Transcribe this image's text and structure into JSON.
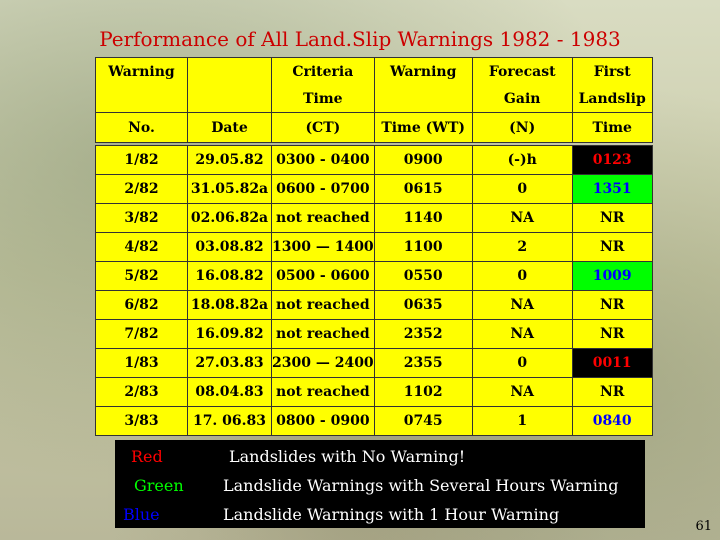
{
  "title": "Performance of All Land.Slip Warnings 1982 - 1983",
  "header_row1": [
    "Warning",
    "",
    "Criteria",
    "Warning",
    "Forecast",
    "First"
  ],
  "header_row2": [
    "",
    "",
    "Time",
    "",
    "Gain",
    "Landslip"
  ],
  "header_row3": [
    "No.",
    "Date",
    "(CT)",
    "Time (WT)",
    "(N)",
    "Time"
  ],
  "rows": [
    {
      "no": "1/82",
      "date": "29.05.82",
      "ct": "0300 - 0400",
      "wt": "0900",
      "gain": "(-)h",
      "first": "0123",
      "status": "red"
    },
    {
      "no": "2/82",
      "date": "31.05.82a",
      "ct": "0600 - 0700",
      "wt": "0615",
      "gain": "0",
      "first": "1351",
      "status": "green"
    },
    {
      "no": "3/82",
      "date": "02.06.82a",
      "ct": "not reached",
      "wt": "1140",
      "gain": "NA",
      "first": "NR",
      "status": "none"
    },
    {
      "no": "4/82",
      "date": "03.08.82",
      "ct": "1300 — 1400",
      "wt": "1100",
      "gain": "2",
      "first": "NR",
      "status": "none"
    },
    {
      "no": "5/82",
      "date": "16.08.82",
      "ct": "0500 - 0600",
      "wt": "0550",
      "gain": "0",
      "first": "1009",
      "status": "green"
    },
    {
      "no": "6/82",
      "date": "18.08.82a",
      "ct": "not reached",
      "wt": "0635",
      "gain": "NA",
      "first": "NR",
      "status": "none"
    },
    {
      "no": "7/82",
      "date": "16.09.82",
      "ct": "not reached",
      "wt": "2352",
      "gain": "NA",
      "first": "NR",
      "status": "none"
    },
    {
      "no": "1/83",
      "date": "27.03.83",
      "ct": "2300 — 2400",
      "wt": "2355",
      "gain": "0",
      "first": "0011",
      "status": "red"
    },
    {
      "no": "2/83",
      "date": "08.04.83",
      "ct": "not reached",
      "wt": "1102",
      "gain": "NA",
      "first": "NR",
      "status": "none"
    },
    {
      "no": "3/83",
      "date": "17. 06.83",
      "ct": "0800 - 0900",
      "wt": "0745",
      "gain": "1",
      "first": "0840",
      "status": "blue"
    }
  ],
  "legend": [
    {
      "key": "Red",
      "text": "Landslides with No Warning!",
      "color": "#ff0000"
    },
    {
      "key": "Green",
      "text": "Landslide Warnings with Several Hours Warning",
      "color": "#00ff00"
    },
    {
      "key": "Blue",
      "text": "Landslide Warnings with 1 Hour Warning",
      "color": "#0000ff"
    }
  ],
  "page_number": "61",
  "colors": {
    "title": "#cc0000",
    "cell": "#ffff00",
    "red": "#ff0000",
    "green": "#00ff00",
    "blue": "#0000ff"
  }
}
